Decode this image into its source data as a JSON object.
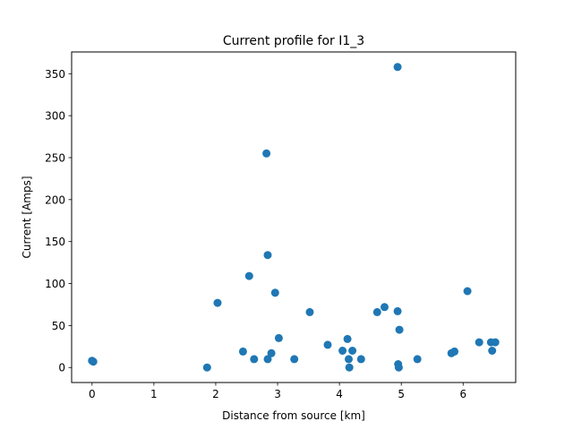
{
  "chart_data": {
    "type": "scatter",
    "title": "Current profile for  I1_3",
    "xlabel": "Distance from source [km]",
    "ylabel": "Current [Amps]",
    "xlim": [
      -0.33,
      6.85
    ],
    "ylim": [
      -17.9,
      375.9
    ],
    "xticks": [
      0,
      1,
      2,
      3,
      4,
      5,
      6
    ],
    "yticks": [
      0,
      50,
      100,
      150,
      200,
      250,
      300,
      350
    ],
    "grid": false,
    "marker_color": "#1f77b4",
    "series": [
      {
        "points": [
          [
            0.0,
            8
          ],
          [
            0.02,
            7
          ],
          [
            1.86,
            0
          ],
          [
            2.03,
            77
          ],
          [
            2.44,
            19
          ],
          [
            2.54,
            109
          ],
          [
            2.62,
            10
          ],
          [
            2.82,
            255
          ],
          [
            2.84,
            134
          ],
          [
            2.84,
            10
          ],
          [
            2.9,
            17
          ],
          [
            2.96,
            89
          ],
          [
            3.02,
            35
          ],
          [
            3.27,
            10
          ],
          [
            3.52,
            66
          ],
          [
            3.81,
            27
          ],
          [
            4.05,
            20
          ],
          [
            4.13,
            34
          ],
          [
            4.15,
            10
          ],
          [
            4.16,
            0
          ],
          [
            4.21,
            20
          ],
          [
            4.35,
            10
          ],
          [
            4.61,
            66
          ],
          [
            4.73,
            72
          ],
          [
            4.94,
            358
          ],
          [
            4.94,
            67
          ],
          [
            4.95,
            4
          ],
          [
            4.96,
            0
          ],
          [
            4.97,
            45
          ],
          [
            5.26,
            10
          ],
          [
            5.81,
            17
          ],
          [
            5.86,
            19
          ],
          [
            6.07,
            91
          ],
          [
            6.26,
            30
          ],
          [
            6.45,
            30
          ],
          [
            6.47,
            20
          ],
          [
            6.52,
            30
          ]
        ]
      }
    ]
  }
}
